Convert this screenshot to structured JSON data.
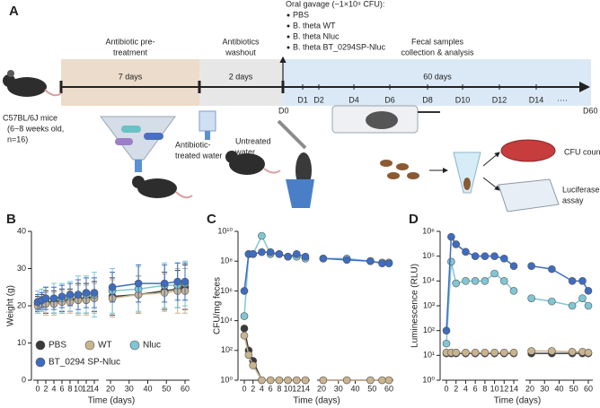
{
  "diagram": {
    "panel": "A",
    "gavage_title": "Oral gavage (~1×10⁹ CFU):",
    "gavage_groups": [
      "PBS",
      "B. theta WT",
      "B. theta Nluc",
      "B. theta BT_0294SP-Nluc"
    ],
    "mouse_label": [
      "C57BL/6J mice",
      "(6~8 weeks old,",
      "n=16)"
    ],
    "phases": [
      {
        "title": [
          "Antibiotic pre-",
          "treatment"
        ],
        "duration": "7 days"
      },
      {
        "title": [
          "Antibiotics",
          "washout"
        ],
        "duration": "2 days"
      },
      {
        "title": [
          "Fecal samples",
          "collection & analysis"
        ],
        "duration": "60 days"
      }
    ],
    "timeline": [
      "D0",
      "D1",
      "D2",
      "D4",
      "D6",
      "D8",
      "D10",
      "D12",
      "D14",
      "····",
      "D60"
    ],
    "illustration_labels": {
      "antibiotic_water": [
        "Antibiotic-",
        "treated water"
      ],
      "untreated_water": [
        "Untreated",
        "water"
      ],
      "cfu": "CFU counting",
      "luciferase": [
        "Luciferase",
        "assay"
      ]
    }
  },
  "chart_data": [
    {
      "panel": "B",
      "type": "line",
      "xlabel": "Time (days)",
      "ylabel": "Weight (g)",
      "legend": "lower center",
      "x": [
        0,
        1,
        2,
        4,
        6,
        8,
        10,
        12,
        14,
        21,
        35,
        49,
        56,
        60
      ],
      "xlim": [
        [
          0,
          14
        ],
        [
          20,
          60
        ]
      ],
      "xticks": [
        [
          0,
          2,
          4,
          6,
          8,
          10,
          12,
          14
        ],
        [
          20,
          30,
          40,
          50,
          60
        ]
      ],
      "ylim": [
        0,
        40
      ],
      "yticks": [
        0,
        10,
        20,
        30,
        40
      ],
      "series": [
        {
          "name": "PBS",
          "color": "#3a3a3a",
          "values": [
            20.5,
            21,
            21,
            21,
            21.5,
            21.5,
            22,
            22,
            22.5,
            22.5,
            23,
            24,
            24.5,
            25
          ],
          "errors": [
            2,
            2,
            3,
            3,
            3,
            3,
            4,
            4,
            4,
            5,
            5,
            5,
            5,
            6
          ]
        },
        {
          "name": "WT",
          "color": "#c9b48f",
          "values": [
            20,
            20.5,
            20.5,
            20.5,
            21,
            21,
            21.5,
            21.5,
            22,
            22,
            23,
            23.5,
            24,
            24
          ],
          "errors": [
            2,
            2,
            3,
            3,
            3,
            3,
            4,
            4,
            4,
            5,
            5,
            5,
            6,
            6
          ]
        },
        {
          "name": "Nluc",
          "color": "#80c6d4",
          "values": [
            21,
            21.5,
            22,
            22,
            22,
            22.5,
            23,
            23,
            23,
            24,
            24.5,
            25.5,
            25.5,
            26
          ],
          "errors": [
            3,
            3,
            3,
            4,
            4,
            4,
            5,
            5,
            6,
            6,
            6,
            6,
            6,
            6
          ]
        },
        {
          "name": "BT_0294 SP-Nluc",
          "color": "#3d6cc0",
          "values": [
            21,
            21.5,
            22,
            22,
            22.5,
            23,
            23,
            23.5,
            23.5,
            25,
            26,
            26,
            26.5,
            26.5
          ],
          "errors": [
            2,
            2,
            3,
            3,
            3,
            3,
            4,
            4,
            4,
            4,
            5,
            5,
            5,
            5
          ]
        }
      ]
    },
    {
      "panel": "C",
      "type": "line",
      "xlabel": "Time (days)",
      "ylabel": "CFU/mg feces",
      "log_y": true,
      "x": [
        0,
        1,
        2,
        4,
        6,
        8,
        10,
        12,
        14,
        21,
        35,
        49,
        56,
        60
      ],
      "xlim": [
        [
          0,
          14
        ],
        [
          20,
          60
        ]
      ],
      "xticks": [
        [
          0,
          2,
          4,
          6,
          8,
          10,
          12,
          14
        ],
        [
          20,
          30,
          40,
          50,
          60
        ]
      ],
      "ylim": [
        1,
        10000000000
      ],
      "yticks": [
        {
          "value": 1,
          "label": "10⁰"
        },
        {
          "value": 100,
          "label": "10²"
        },
        {
          "value": 10000,
          "label": "10⁴"
        },
        {
          "value": 1000000,
          "label": "10⁶"
        },
        {
          "value": 100000000,
          "label": "10⁸"
        },
        {
          "value": 10000000000,
          "label": "10¹⁰"
        }
      ],
      "series": [
        {
          "name": "PBS",
          "color": "#3a3a3a",
          "values": [
            3000,
            100,
            20,
            1,
            1,
            1,
            1,
            1,
            1,
            1,
            1,
            1,
            1,
            1
          ]
        },
        {
          "name": "WT",
          "color": "#c9b48f",
          "values": [
            1000,
            50,
            10,
            1,
            1,
            1,
            1,
            1,
            1,
            1,
            1,
            1,
            1,
            1
          ]
        },
        {
          "name": "Nluc",
          "color": "#80c6d4",
          "values": [
            20000,
            300000000,
            300000000,
            5000000000,
            300000000,
            300000000,
            200000000,
            200000000,
            150000000,
            150000000,
            150000000,
            100000000,
            80000000,
            80000000
          ]
        },
        {
          "name": "BT_0294 SP-Nluc",
          "color": "#3d6cc0",
          "values": [
            1000000,
            300000000,
            300000000,
            400000000,
            400000000,
            300000000,
            200000000,
            300000000,
            200000000,
            150000000,
            120000000,
            100000000,
            70000000,
            70000000
          ]
        }
      ]
    },
    {
      "panel": "D",
      "type": "line",
      "xlabel": "Time (days)",
      "ylabel": "Luminescence (RLU)",
      "log_y": true,
      "x": [
        0,
        1,
        2,
        4,
        6,
        8,
        10,
        12,
        14,
        21,
        35,
        49,
        56,
        60
      ],
      "xlim": [
        [
          0,
          14
        ],
        [
          20,
          60
        ]
      ],
      "xticks": [
        [
          0,
          2,
          4,
          6,
          8,
          10,
          12,
          14
        ],
        [
          20,
          30,
          40,
          50,
          60
        ]
      ],
      "ylim": [
        1,
        1000000
      ],
      "yticks": [
        {
          "value": 1,
          "label": "10⁰"
        },
        {
          "value": 10,
          "label": "10¹"
        },
        {
          "value": 100,
          "label": "10²"
        },
        {
          "value": 1000,
          "label": "10³"
        },
        {
          "value": 10000,
          "label": "10⁴"
        },
        {
          "value": 100000,
          "label": "10⁵"
        },
        {
          "value": 1000000,
          "label": "10⁶"
        }
      ],
      "series": [
        {
          "name": "PBS",
          "color": "#3a3a3a",
          "values": [
            12,
            12,
            12,
            12,
            12,
            12,
            12,
            12,
            12,
            12,
            12,
            12,
            12,
            12
          ]
        },
        {
          "name": "WT",
          "color": "#c9b48f",
          "values": [
            13,
            13,
            13,
            13,
            13,
            13,
            13,
            13,
            13,
            15,
            15,
            14,
            14,
            13
          ]
        },
        {
          "name": "Nluc",
          "color": "#80c6d4",
          "values": [
            30,
            60000,
            8000,
            10000,
            10000,
            10000,
            20000,
            10000,
            4000,
            2000,
            1500,
            1000,
            2000,
            1000
          ]
        },
        {
          "name": "BT_0294 SP-Nluc",
          "color": "#3d6cc0",
          "values": [
            100,
            600000,
            300000,
            150000,
            100000,
            100000,
            100000,
            80000,
            40000,
            40000,
            30000,
            10000,
            10000,
            4000
          ]
        }
      ]
    }
  ]
}
